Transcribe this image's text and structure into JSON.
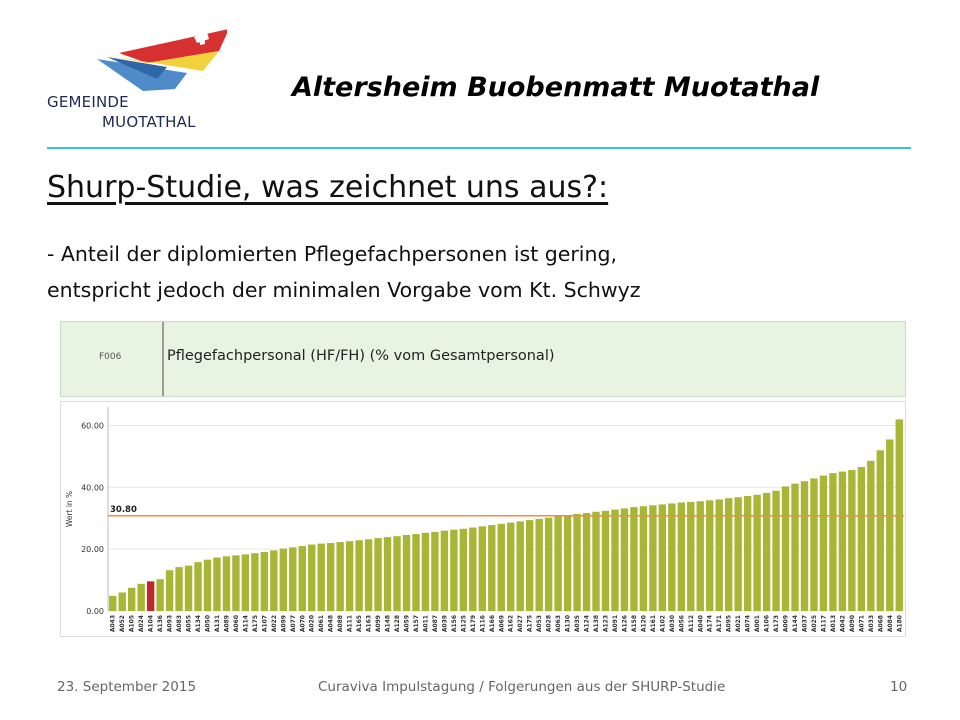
{
  "logo": {
    "line1": "GEMEINDE",
    "line2": "MUOTATHAL"
  },
  "header": {
    "title": "Altersheim Buobenmatt Muotathal"
  },
  "slide": {
    "heading": "Shurp-Studie, was zeichnet uns aus?:",
    "body_line1": "- Anteil der diplomierten Pflegefachpersonen ist gering,",
    "body_line2": "entspricht jedoch der minimalen Vorgabe vom Kt. Schwyz"
  },
  "band": {
    "code": "F006",
    "label": "Pflegefachpersonal (HF/FH) (% vom Gesamtpersonal)"
  },
  "chart_data": {
    "type": "bar",
    "ylabel": "Wert in %",
    "yticks": [
      "0.00",
      "20.00",
      "40.00",
      "60.00"
    ],
    "ylim": [
      0,
      66
    ],
    "reference_line": {
      "value": 30.8,
      "label": "30.80"
    },
    "highlight_index": 4,
    "colors": {
      "bar": "#a7b735",
      "highlight": "#c0262a",
      "reference": "#e8923a",
      "grid": "#e8e8e8"
    },
    "categories": [
      "A043",
      "A052",
      "A105",
      "A024",
      "A104",
      "A136",
      "A093",
      "A083",
      "A055",
      "A134",
      "A050",
      "A131",
      "A089",
      "A060",
      "A114",
      "A175",
      "A107",
      "A022",
      "A099",
      "A077",
      "A070",
      "A020",
      "A061",
      "A048",
      "A088",
      "A111",
      "A165",
      "A163",
      "A099",
      "A148",
      "A128",
      "A059",
      "A157",
      "A011",
      "A087",
      "A039",
      "A156",
      "A125",
      "A179",
      "A116",
      "A166",
      "A069",
      "A162",
      "A027",
      "A175",
      "A053",
      "A028",
      "A063",
      "A130",
      "A035",
      "A124",
      "A138",
      "A123",
      "A091",
      "A126",
      "A158",
      "A120",
      "A161",
      "A102",
      "A030",
      "A056",
      "A112",
      "A040",
      "A174",
      "A171",
      "A095",
      "A021",
      "A074",
      "A001",
      "A106",
      "A173",
      "A009",
      "A144",
      "A037",
      "A025",
      "A117",
      "A013",
      "A042",
      "A090",
      "A071",
      "A033",
      "A068",
      "A084",
      "A180"
    ],
    "values": [
      4.9,
      6.0,
      7.5,
      8.8,
      9.6,
      10.3,
      13.2,
      14.2,
      14.7,
      15.8,
      16.6,
      17.3,
      17.7,
      18.0,
      18.3,
      18.7,
      19.1,
      19.6,
      20.2,
      20.6,
      21.0,
      21.5,
      21.8,
      22.0,
      22.3,
      22.6,
      22.9,
      23.2,
      23.6,
      23.9,
      24.2,
      24.6,
      24.9,
      25.3,
      25.6,
      26.0,
      26.3,
      26.6,
      27.0,
      27.4,
      27.8,
      28.2,
      28.6,
      29.0,
      29.4,
      29.8,
      30.2,
      30.6,
      31.0,
      31.4,
      31.7,
      32.1,
      32.4,
      32.8,
      33.2,
      33.6,
      33.9,
      34.2,
      34.5,
      34.8,
      35.1,
      35.3,
      35.5,
      35.8,
      36.1,
      36.5,
      36.8,
      37.2,
      37.6,
      38.2,
      38.9,
      40.3,
      41.2,
      42.0,
      42.9,
      43.8,
      44.6,
      45.1,
      45.6,
      46.6,
      48.6,
      52.0,
      55.5,
      62.0
    ]
  },
  "footer": {
    "date": "23. September 2015",
    "center": "Curaviva Impulstagung / Folgerungen aus der SHURP-Studie",
    "page": "10"
  }
}
